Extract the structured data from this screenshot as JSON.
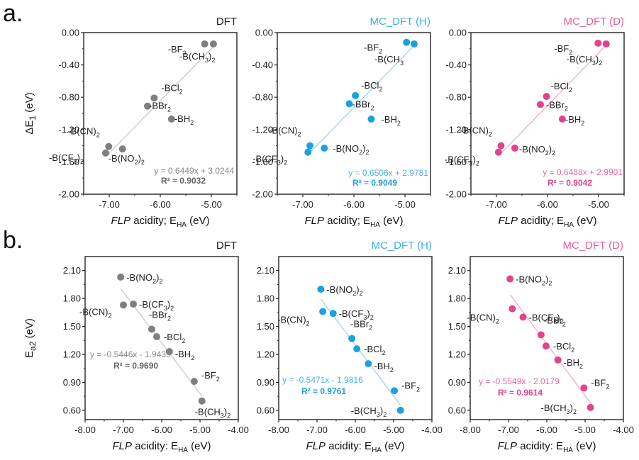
{
  "figure": {
    "panel_labels": [
      "a.",
      "b."
    ],
    "sub_tag": "2"
  },
  "chart_data": [
    {
      "type": "scatter",
      "row": "a",
      "title": "DFT",
      "color": "#7f7f7f",
      "label_color": "#222222",
      "xlabel_italic": "FLP",
      "xlabel_rest": " acidity; E",
      "xlabel_sub": "HA",
      "xlabel_unit": " (eV)",
      "ylabel_main": "ΔE",
      "ylabel_sub": "1",
      "ylabel_unit": " (eV)",
      "xlim": [
        -7.5,
        -4.5
      ],
      "ylim": [
        -2.0,
        0.0
      ],
      "xticks": [
        -7.0,
        -6.0,
        -5.0
      ],
      "xtick_labels": [
        "-7.00",
        "-6.00",
        "-5.00"
      ],
      "yticks": [
        0.0,
        -0.4,
        -0.8,
        -1.2,
        -1.6,
        -2.0
      ],
      "ytick_labels": [
        "0.00",
        "-0.40",
        "-0.80",
        "-1.20",
        "-1.60",
        "-2.00"
      ],
      "fit": {
        "slope": 0.6449,
        "intercept": 3.0244,
        "x_range": [
          -7.05,
          -4.95
        ]
      },
      "equation": "y = 0.6449x + 3.0244",
      "r2": "R² = 0.9032",
      "points": [
        {
          "name": "-BF",
          "sub": "2",
          "x": -5.13,
          "y": -0.14
        },
        {
          "name": "-B(CH",
          "sub": "3",
          "suffix": ")",
          "sub2": "2",
          "x": -4.96,
          "y": -0.14
        },
        {
          "name": "-BCl",
          "sub": "2",
          "x": -6.12,
          "y": -0.81
        },
        {
          "name": "-BBr",
          "sub": "2",
          "x": -6.25,
          "y": -0.91
        },
        {
          "name": "-BH",
          "sub": "2",
          "x": -5.78,
          "y": -1.07
        },
        {
          "name": "-B(CN)",
          "sub": "2",
          "x": -7.01,
          "y": -1.41
        },
        {
          "name": "-B(CF",
          "sub": "3",
          "suffix": ")",
          "sub2": "2",
          "x": -7.07,
          "y": -1.49
        },
        {
          "name": "-B(NO",
          "sub": "2",
          "suffix": ")",
          "sub2": "2",
          "x": -6.74,
          "y": -1.44
        }
      ]
    },
    {
      "type": "scatter",
      "row": "a",
      "title": "MC_DFT (H)",
      "color": "#1ba1e2",
      "label_color": "#222222",
      "xlabel_italic": "FLP",
      "xlabel_rest": " acidity; E",
      "xlabel_sub": "HA",
      "xlabel_unit": " (eV)",
      "ylabel_main": "",
      "ylabel_sub": "",
      "ylabel_unit": "",
      "xlim": [
        -7.5,
        -4.5
      ],
      "ylim": [
        -2.0,
        0.0
      ],
      "xticks": [
        -7.0,
        -6.0,
        -5.0
      ],
      "xtick_labels": [
        "-7.00",
        "-6.00",
        "-5.00"
      ],
      "yticks": [
        0.0,
        -0.4,
        -0.8,
        -1.2,
        -1.6,
        -2.0
      ],
      "ytick_labels": [
        "0.00",
        "-0.40",
        "-0.80",
        "-1.20",
        "-1.60",
        "-2.00"
      ],
      "fit": {
        "slope": 0.6506,
        "intercept": 2.9781,
        "x_range": [
          -6.9,
          -4.83
        ]
      },
      "equation": "y = 0.6506x + 2.9781",
      "r2": "R² = 0.9049",
      "points": [
        {
          "name": "-BF",
          "sub": "2",
          "x": -4.97,
          "y": -0.12
        },
        {
          "name": "-B(CH",
          "sub": "3",
          "suffix": "",
          "sub2": "",
          "x": -4.82,
          "y": -0.14
        },
        {
          "name": "-BCl",
          "sub": "2",
          "x": -5.97,
          "y": -0.78
        },
        {
          "name": "-BBr",
          "sub": "2",
          "x": -6.09,
          "y": -0.88
        },
        {
          "name": "-BH",
          "sub": "2",
          "x": -5.66,
          "y": -1.07
        },
        {
          "name": "-B(CN)",
          "sub": "2",
          "x": -6.86,
          "y": -1.4
        },
        {
          "name": "-B(CF",
          "sub": "3",
          "suffix": ")",
          "sub2": "2",
          "x": -6.9,
          "y": -1.48
        },
        {
          "name": "-B(NO",
          "sub": "2",
          "suffix": ")",
          "sub2": "2",
          "x": -6.58,
          "y": -1.43
        }
      ]
    },
    {
      "type": "scatter",
      "row": "a",
      "title": "MC_DFT (D)",
      "color": "#e2448c",
      "label_color": "#222222",
      "xlabel_italic": "FLP",
      "xlabel_rest": " acidity; E",
      "xlabel_sub": "HA",
      "xlabel_unit": " (eV)",
      "ylabel_main": "",
      "ylabel_sub": "",
      "ylabel_unit": "",
      "xlim": [
        -7.5,
        -4.5
      ],
      "ylim": [
        -2.0,
        0.0
      ],
      "xticks": [
        -7.0,
        -6.0,
        -5.0
      ],
      "xtick_labels": [
        "-7.00",
        "-6.00",
        "-5.00"
      ],
      "yticks": [
        0.0,
        -0.4,
        -0.8,
        -1.2,
        -1.6,
        -2.0
      ],
      "ytick_labels": [
        "0.00",
        "-0.40",
        "-0.80",
        "-1.20",
        "-1.60",
        "-2.00"
      ],
      "fit": {
        "slope": 0.6488,
        "intercept": 2.9901,
        "x_range": [
          -6.95,
          -4.85
        ]
      },
      "equation": "y = 0.6488x + 2.9901",
      "r2": "R² = 0.9042",
      "points": [
        {
          "name": "-BF",
          "sub": "2",
          "x": -5.01,
          "y": -0.13
        },
        {
          "name": "-B(CH",
          "sub": "3",
          "suffix": ")",
          "sub2": "2",
          "x": -4.85,
          "y": -0.14
        },
        {
          "name": "-BCl",
          "sub": "2",
          "x": -6.02,
          "y": -0.79
        },
        {
          "name": "-BBr",
          "sub": "2",
          "x": -6.14,
          "y": -0.89
        },
        {
          "name": "-BH",
          "sub": "2",
          "x": -5.71,
          "y": -1.07
        },
        {
          "name": "-B(CN)",
          "sub": "2",
          "x": -6.91,
          "y": -1.4
        },
        {
          "name": "-B(CF",
          "sub": "3",
          "suffix": ")",
          "sub2": "2",
          "x": -6.96,
          "y": -1.48
        },
        {
          "name": "-B(NO",
          "sub": "2",
          "suffix": ")",
          "sub2": "2",
          "x": -6.64,
          "y": -1.43
        }
      ]
    },
    {
      "type": "scatter",
      "row": "b",
      "title": "DFT",
      "color": "#7f7f7f",
      "label_color": "#222222",
      "xlabel_italic": "FLP",
      "xlabel_rest": " acidity: E",
      "xlabel_sub": "HA",
      "xlabel_unit": " (eV)",
      "ylabel_main": "E",
      "ylabel_sub": "a2",
      "ylabel_unit": " (eV)",
      "xlim": [
        -8.0,
        -4.0
      ],
      "ylim": [
        0.5,
        2.25
      ],
      "xticks": [
        -8.0,
        -7.0,
        -6.0,
        -5.0,
        -4.0
      ],
      "xtick_labels": [
        "-8.00",
        "-7.00",
        "-6.00",
        "-5.00",
        "-4.00"
      ],
      "yticks": [
        2.1,
        1.8,
        1.5,
        1.2,
        0.9,
        0.6
      ],
      "ytick_labels": [
        "2.10",
        "1.80",
        "1.50",
        "1.20",
        "0.90",
        "0.60"
      ],
      "fit": {
        "slope": -0.5446,
        "intercept": -1.9439,
        "x_range": [
          -7.07,
          -4.95
        ]
      },
      "equation": "y = -0.5446x - 1.9439",
      "r2": "R² = 0.9690",
      "points": [
        {
          "name": "-B(NO",
          "sub": "2",
          "suffix": ")",
          "sub2": "2",
          "x": -7.07,
          "y": 2.03
        },
        {
          "name": "-B(CN)",
          "sub": "2",
          "x": -7.0,
          "y": 1.73
        },
        {
          "name": "-B(CF",
          "sub": "3",
          "suffix": ")",
          "sub2": "2",
          "x": -6.74,
          "y": 1.74
        },
        {
          "name": "-BBr",
          "sub": "2",
          "x": -6.26,
          "y": 1.47
        },
        {
          "name": "-BCl",
          "sub": "2",
          "x": -6.13,
          "y": 1.39
        },
        {
          "name": "-BH",
          "sub": "2",
          "x": -5.8,
          "y": 1.23
        },
        {
          "name": "-BF",
          "sub": "2",
          "x": -5.15,
          "y": 0.91
        },
        {
          "name": "-B(CH",
          "sub": "3",
          "suffix": ")",
          "sub2": "2",
          "x": -4.95,
          "y": 0.7
        }
      ]
    },
    {
      "type": "scatter",
      "row": "b",
      "title": "MC_DFT (H)",
      "color": "#1ba1e2",
      "label_color": "#222222",
      "xlabel_italic": "FLP",
      "xlabel_rest": " acidity: E",
      "xlabel_sub": "HA",
      "xlabel_unit": " (eV)",
      "ylabel_main": "",
      "ylabel_sub": "",
      "ylabel_unit": "",
      "xlim": [
        -8.0,
        -4.0
      ],
      "ylim": [
        0.5,
        2.25
      ],
      "xticks": [
        -8.0,
        -7.0,
        -6.0,
        -5.0,
        -4.0
      ],
      "xtick_labels": [
        "-8.00",
        "-7.00",
        "-6.00",
        "-5.00",
        "-4.00"
      ],
      "yticks": [
        2.1,
        1.8,
        1.5,
        1.2,
        0.9,
        0.6
      ],
      "ytick_labels": [
        "2.10",
        "1.80",
        "1.50",
        "1.20",
        "0.90",
        "0.60"
      ],
      "fit": {
        "slope": -0.5471,
        "intercept": -1.9816,
        "x_range": [
          -6.9,
          -4.82
        ]
      },
      "equation": "y = -0.5471x - 1.9816",
      "r2": "R² = 0.9761",
      "points": [
        {
          "name": "-B(NO",
          "sub": "2",
          "suffix": ")",
          "sub2": "2",
          "x": -6.9,
          "y": 1.9
        },
        {
          "name": "-B(CN)",
          "sub": "2",
          "x": -6.85,
          "y": 1.66
        },
        {
          "name": "-B(CF",
          "sub": "3",
          "suffix": ")",
          "sub2": "2",
          "x": -6.58,
          "y": 1.64
        },
        {
          "name": "-BBr",
          "sub": "2",
          "x": -6.09,
          "y": 1.37
        },
        {
          "name": "-BCl",
          "sub": "2",
          "x": -5.96,
          "y": 1.26
        },
        {
          "name": "-BH",
          "sub": "2",
          "x": -5.66,
          "y": 1.1
        },
        {
          "name": "-BF",
          "sub": "2",
          "x": -4.98,
          "y": 0.81
        },
        {
          "name": "-B(CH",
          "sub": "3",
          "suffix": ")",
          "sub2": "2",
          "x": -4.82,
          "y": 0.6
        }
      ]
    },
    {
      "type": "scatter",
      "row": "b",
      "title": "MC_DFT (D)",
      "color": "#e2448c",
      "label_color": "#222222",
      "xlabel_italic": "FLP",
      "xlabel_rest": " acidity: E",
      "xlabel_sub": "HA",
      "xlabel_unit": " (eV)",
      "ylabel_main": "",
      "ylabel_sub": "",
      "ylabel_unit": "",
      "xlim": [
        -8.0,
        -4.0
      ],
      "ylim": [
        0.5,
        2.25
      ],
      "xticks": [
        -8.0,
        -7.0,
        -6.0,
        -5.0,
        -4.0
      ],
      "xtick_labels": [
        "-8.00",
        "-7.00",
        "-6.00",
        "-5.00",
        "-4.00"
      ],
      "yticks": [
        2.1,
        1.8,
        1.5,
        1.2,
        0.9,
        0.6
      ],
      "ytick_labels": [
        "2.10",
        "1.80",
        "1.50",
        "1.20",
        "0.90",
        "0.60"
      ],
      "fit": {
        "slope": -0.5549,
        "intercept": -2.0179,
        "x_range": [
          -6.95,
          -4.85
        ]
      },
      "equation": "y = -0.5549x - 2.0179",
      "r2": "R² = 0.9614",
      "points": [
        {
          "name": "-B(NO",
          "sub": "2",
          "suffix": ")",
          "sub2": "2",
          "x": -6.96,
          "y": 2.01
        },
        {
          "name": "-B(CN)",
          "sub": "2",
          "x": -6.9,
          "y": 1.69
        },
        {
          "name": "-B(CF",
          "sub": "3",
          "suffix": ")",
          "sub2": "2",
          "x": -6.62,
          "y": 1.6
        },
        {
          "name": "-BBr",
          "sub": "2",
          "x": -6.15,
          "y": 1.41
        },
        {
          "name": "-BCl",
          "sub": "2",
          "x": -6.02,
          "y": 1.29
        },
        {
          "name": "-BH",
          "sub": "2",
          "x": -5.71,
          "y": 1.14
        },
        {
          "name": "-BF",
          "sub": "2",
          "x": -5.03,
          "y": 0.84
        },
        {
          "name": "-B(CH",
          "sub": "3",
          "suffix": ")",
          "sub2": "2",
          "x": -4.86,
          "y": 0.63
        }
      ]
    }
  ]
}
